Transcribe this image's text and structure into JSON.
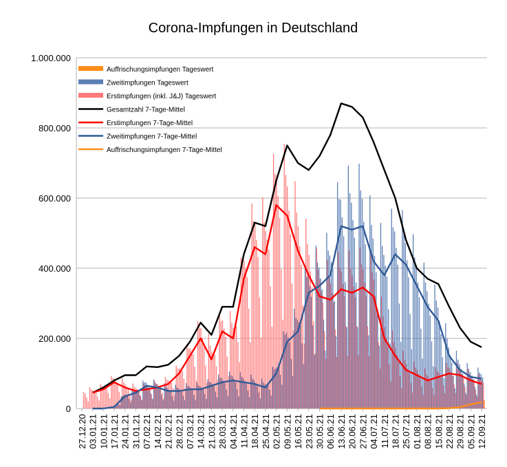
{
  "chart_data": {
    "type": "bar",
    "title": "Corona-Impfungen in Deutschland",
    "ylim": [
      0,
      1000000
    ],
    "yticks": [
      0,
      200000,
      400000,
      600000,
      800000,
      1000000
    ],
    "ytick_labels": [
      "0",
      "200.000",
      "400.000",
      "600.000",
      "800.000",
      "1.000.000"
    ],
    "grid": true,
    "legend_position": "top-left",
    "x_start": "27.12.20",
    "x_end": "12.09.21",
    "xtick_labels": [
      "27.12.20",
      "03.01.21",
      "10.01.21",
      "17.01.21",
      "24.01.21",
      "31.01.21",
      "07.02.21",
      "14.02.21",
      "21.02.21",
      "28.02.21",
      "07.03.21",
      "14.03.21",
      "21.03.21",
      "28.03.21",
      "04.04.21",
      "11.04.21",
      "18.04.21",
      "25.04.21",
      "02.05.21",
      "09.05.21",
      "16.05.21",
      "23.05.21",
      "30.05.21",
      "06.06.21",
      "13.06.21",
      "20.06.21",
      "27.06.21",
      "04.07.21",
      "11.07.21",
      "18.07.21",
      "25.07.21",
      "01.08.21",
      "08.08.21",
      "15.08.21",
      "22.08.21",
      "29.08.21",
      "05.09.21",
      "12.09.21"
    ],
    "colors": {
      "booster_bar": "#ff8c1a",
      "second_bar": "#5b7fb5",
      "first_bar": "#ff7a7a",
      "total_line": "#000000",
      "first_line": "#ff0000",
      "second_line": "#2f5a96",
      "booster_line": "#ff8c1a"
    },
    "legend": [
      {
        "name": "Auffrischungsimpfungen Tageswert",
        "kind": "bar",
        "color": "#ff8c1a"
      },
      {
        "name": "Zweitimpfungen Tageswert",
        "kind": "bar",
        "color": "#5b7fb5"
      },
      {
        "name": "Erstimpfungen (inkl. J&J) Tageswert",
        "kind": "bar",
        "color": "#ff7a7a"
      },
      {
        "name": "Gesamtzahl 7-Tage-Mittel",
        "kind": "line",
        "color": "#000000"
      },
      {
        "name": "Erstimpfungen 7-Tage-Mittel",
        "kind": "line",
        "color": "#ff0000"
      },
      {
        "name": "Zweitimpfungen 7-Tage-Mittel",
        "kind": "line",
        "color": "#2f5a96"
      },
      {
        "name": "Auffrischungsimpfungen 7-Tage-Mittel",
        "kind": "line",
        "color": "#ff8c1a"
      }
    ],
    "series": [
      {
        "name": "Gesamtzahl 7-Tage-Mittel",
        "x": [
          "27.12.20",
          "03.01.21",
          "10.01.21",
          "17.01.21",
          "24.01.21",
          "31.01.21",
          "07.02.21",
          "14.02.21",
          "21.02.21",
          "28.02.21",
          "07.03.21",
          "14.03.21",
          "21.03.21",
          "28.03.21",
          "04.04.21",
          "11.04.21",
          "18.04.21",
          "25.04.21",
          "02.05.21",
          "09.05.21",
          "16.05.21",
          "23.05.21",
          "30.05.21",
          "06.06.21",
          "13.06.21",
          "20.06.21",
          "27.06.21",
          "04.07.21",
          "11.07.21",
          "18.07.21",
          "25.07.21",
          "01.08.21",
          "08.08.21",
          "15.08.21",
          "22.08.21",
          "29.08.21",
          "05.09.21",
          "12.09.21"
        ],
        "values": [
          null,
          45000,
          60000,
          80000,
          95000,
          95000,
          120000,
          118000,
          125000,
          150000,
          190000,
          245000,
          210000,
          290000,
          290000,
          440000,
          530000,
          520000,
          650000,
          750000,
          700000,
          680000,
          720000,
          780000,
          870000,
          860000,
          830000,
          760000,
          680000,
          600000,
          480000,
          400000,
          370000,
          355000,
          290000,
          230000,
          190000,
          175000
        ]
      },
      {
        "name": "Erstimpfungen 7-Tage-Mittel",
        "x": [
          "27.12.20",
          "03.01.21",
          "10.01.21",
          "17.01.21",
          "24.01.21",
          "31.01.21",
          "07.02.21",
          "14.02.21",
          "21.02.21",
          "28.02.21",
          "07.03.21",
          "14.03.21",
          "21.03.21",
          "28.03.21",
          "04.04.21",
          "11.04.21",
          "18.04.21",
          "25.04.21",
          "02.05.21",
          "09.05.21",
          "16.05.21",
          "23.05.21",
          "30.05.21",
          "06.06.21",
          "13.06.21",
          "20.06.21",
          "27.06.21",
          "04.07.21",
          "11.07.21",
          "18.07.21",
          "25.07.21",
          "01.08.21",
          "08.08.21",
          "15.08.21",
          "22.08.21",
          "29.08.21",
          "05.09.21",
          "12.09.21"
        ],
        "values": [
          null,
          45000,
          55000,
          75000,
          60000,
          50000,
          55000,
          60000,
          70000,
          100000,
          150000,
          200000,
          140000,
          220000,
          200000,
          370000,
          460000,
          440000,
          580000,
          550000,
          450000,
          380000,
          320000,
          310000,
          340000,
          330000,
          345000,
          320000,
          200000,
          150000,
          110000,
          95000,
          80000,
          90000,
          100000,
          95000,
          80000,
          70000
        ]
      },
      {
        "name": "Zweitimpfungen 7-Tage-Mittel",
        "x": [
          "27.12.20",
          "03.01.21",
          "10.01.21",
          "17.01.21",
          "24.01.21",
          "31.01.21",
          "07.02.21",
          "14.02.21",
          "21.02.21",
          "28.02.21",
          "07.03.21",
          "14.03.21",
          "21.03.21",
          "28.03.21",
          "04.04.21",
          "11.04.21",
          "18.04.21",
          "25.04.21",
          "02.05.21",
          "09.05.21",
          "16.05.21",
          "23.05.21",
          "30.05.21",
          "06.06.21",
          "13.06.21",
          "20.06.21",
          "27.06.21",
          "04.07.21",
          "11.07.21",
          "18.07.21",
          "25.07.21",
          "01.08.21",
          "08.08.21",
          "15.08.21",
          "22.08.21",
          "29.08.21",
          "05.09.21",
          "12.09.21"
        ],
        "values": [
          null,
          0,
          0,
          5000,
          35000,
          45000,
          65000,
          60000,
          50000,
          50000,
          55000,
          55000,
          65000,
          75000,
          80000,
          75000,
          70000,
          60000,
          100000,
          190000,
          220000,
          330000,
          350000,
          380000,
          520000,
          510000,
          520000,
          420000,
          380000,
          440000,
          410000,
          350000,
          290000,
          250000,
          150000,
          110000,
          90000,
          85000
        ]
      },
      {
        "name": "Auffrischungsimpfungen 7-Tage-Mittel",
        "x": [
          "30.05.21",
          "06.06.21",
          "13.06.21",
          "20.06.21",
          "27.06.21",
          "04.07.21",
          "11.07.21",
          "18.07.21",
          "25.07.21",
          "01.08.21",
          "08.08.21",
          "15.08.21",
          "22.08.21",
          "29.08.21",
          "05.09.21",
          "12.09.21"
        ],
        "values": [
          0,
          0,
          0,
          0,
          0,
          0,
          0,
          0,
          0,
          0,
          0,
          0,
          1000,
          4000,
          12000,
          18000
        ]
      }
    ]
  }
}
